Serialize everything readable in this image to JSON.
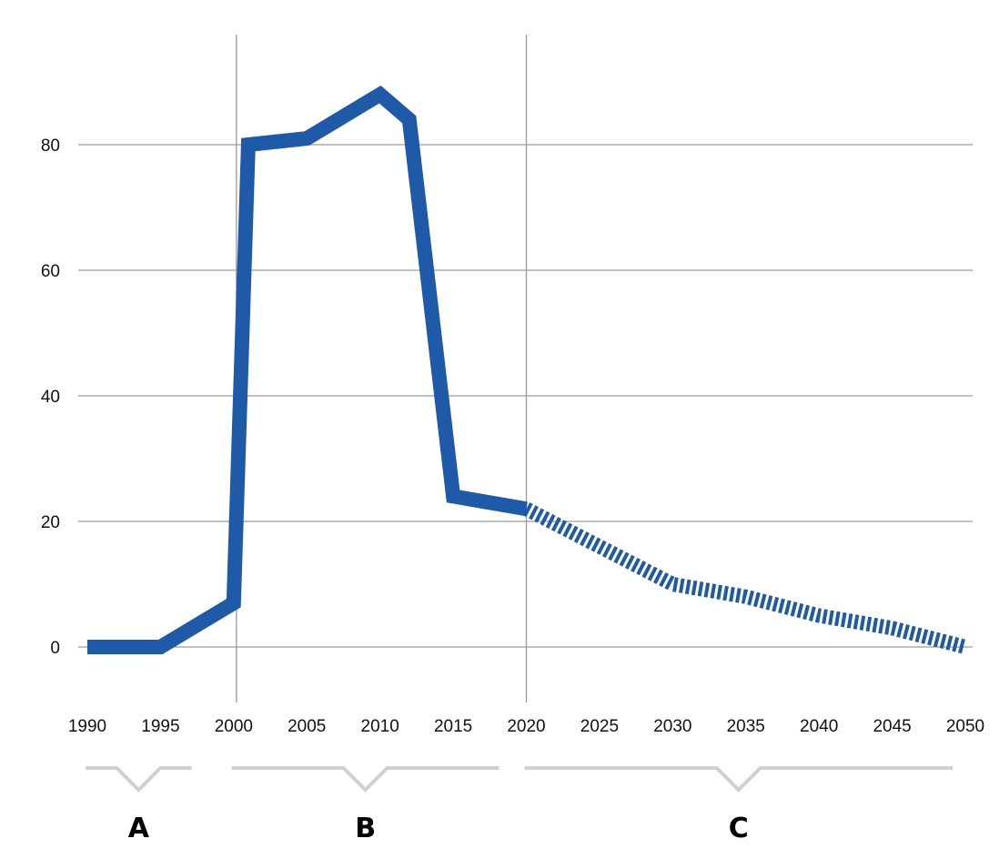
{
  "chart_data": {
    "type": "line",
    "title": "",
    "xlabel": "",
    "ylabel": "",
    "x_ticks": [
      "1990",
      "1995",
      "2000",
      "2005",
      "2010",
      "2015",
      "2020",
      "2025",
      "2030",
      "2035",
      "2040",
      "2045",
      "2050"
    ],
    "y_ticks": [
      "0",
      "20",
      "40",
      "60",
      "80"
    ],
    "xlim": [
      1990,
      2050
    ],
    "ylim": [
      -8,
      97
    ],
    "grid": "horizontal",
    "series": [
      {
        "style": "solid",
        "x": [
          1990,
          1995,
          2000,
          2001,
          2005,
          2010,
          2012,
          2015,
          2020
        ],
        "y": [
          0,
          0,
          7,
          80,
          81,
          88,
          84,
          24,
          22
        ]
      },
      {
        "style": "dashed",
        "x": [
          2020,
          2025,
          2030,
          2035,
          2040,
          2045,
          2050
        ],
        "y": [
          22,
          16,
          10,
          8,
          5,
          3,
          0
        ]
      }
    ],
    "period_dividers": [
      2000,
      2020
    ],
    "periods": [
      {
        "label": "A",
        "from": 1990,
        "to": 1998
      },
      {
        "label": "B",
        "from": 2000,
        "to": 2019
      },
      {
        "label": "C",
        "from": 2020,
        "to": 2050
      }
    ],
    "colors": {
      "line": "#1f5aa8",
      "grid": "#9a9a9a",
      "divider": "#9a9a9a",
      "brace": "#d0d0d0"
    }
  }
}
